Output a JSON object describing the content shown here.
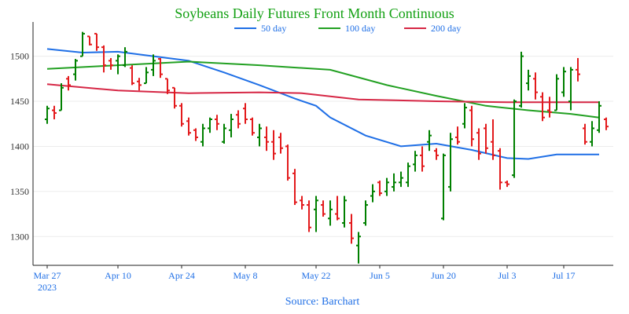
{
  "chart_data": {
    "type": "ohlc",
    "title": "Soybeans Daily Futures Front Month Continuous",
    "source": "Source: Barchart",
    "ylim": [
      1268,
      1538
    ],
    "yticks": [
      1300,
      1350,
      1400,
      1450,
      1500
    ],
    "xlim": [
      -2,
      80
    ],
    "xticks": [
      {
        "label": "Mar 27",
        "sub": "2023",
        "day": 0
      },
      {
        "label": "Apr 10",
        "sub": "",
        "day": 10
      },
      {
        "label": "Apr 24",
        "sub": "",
        "day": 19
      },
      {
        "label": "May 8",
        "sub": "",
        "day": 28
      },
      {
        "label": "May 22",
        "sub": "",
        "day": 38
      },
      {
        "label": "Jun 5",
        "sub": "",
        "day": 47
      },
      {
        "label": "Jun 20",
        "sub": "",
        "day": 56
      },
      {
        "label": "Jul 3",
        "sub": "",
        "day": 65
      },
      {
        "label": "Jul 17",
        "sub": "",
        "day": 73
      }
    ],
    "colors": {
      "up": "#008000",
      "down": "#e31a1c",
      "ma50": "#1f6fe6",
      "ma100": "#22a022",
      "ma200": "#d62745",
      "axis": "#1f6fe6"
    },
    "series": [
      {
        "name": "50 day",
        "key": "ma50",
        "points": [
          [
            0,
            1508
          ],
          [
            5,
            1504
          ],
          [
            10,
            1505
          ],
          [
            15,
            1500
          ],
          [
            20,
            1495
          ],
          [
            25,
            1482
          ],
          [
            30,
            1468
          ],
          [
            35,
            1453
          ],
          [
            38,
            1445
          ],
          [
            40,
            1432
          ],
          [
            45,
            1412
          ],
          [
            50,
            1400
          ],
          [
            55,
            1403
          ],
          [
            60,
            1396
          ],
          [
            65,
            1387
          ],
          [
            68,
            1386
          ],
          [
            72,
            1391
          ],
          [
            78,
            1391
          ]
        ]
      },
      {
        "name": "100 day",
        "key": "ma100",
        "points": [
          [
            0,
            1486
          ],
          [
            10,
            1490
          ],
          [
            20,
            1494
          ],
          [
            30,
            1490
          ],
          [
            40,
            1485
          ],
          [
            48,
            1468
          ],
          [
            55,
            1456
          ],
          [
            62,
            1445
          ],
          [
            68,
            1440
          ],
          [
            74,
            1436
          ],
          [
            78,
            1432
          ]
        ]
      },
      {
        "name": "200 day",
        "key": "ma200",
        "points": [
          [
            0,
            1469
          ],
          [
            10,
            1462
          ],
          [
            20,
            1459
          ],
          [
            30,
            1460
          ],
          [
            36,
            1459
          ],
          [
            44,
            1452
          ],
          [
            55,
            1450
          ],
          [
            65,
            1449
          ],
          [
            78,
            1449
          ]
        ]
      }
    ],
    "bars": [
      [
        0,
        1430,
        1445,
        1425,
        1442
      ],
      [
        1,
        1440,
        1445,
        1430,
        1437
      ],
      [
        2,
        1440,
        1470,
        1440,
        1465
      ],
      [
        3,
        1475,
        1478,
        1462,
        1468
      ],
      [
        4,
        1480,
        1497,
        1473,
        1495
      ],
      [
        5,
        1500,
        1527,
        1500,
        1525
      ],
      [
        6,
        1522,
        1522,
        1512,
        1513
      ],
      [
        7,
        1525,
        1525,
        1506,
        1510
      ],
      [
        8,
        1510,
        1512,
        1482,
        1490
      ],
      [
        9,
        1495,
        1498,
        1485,
        1490
      ],
      [
        10,
        1495,
        1502,
        1480,
        1500
      ],
      [
        11,
        1490,
        1510,
        1488,
        1505
      ],
      [
        12,
        1487,
        1490,
        1468,
        1470
      ],
      [
        13,
        1472,
        1476,
        1462,
        1468
      ],
      [
        14,
        1470,
        1488,
        1470,
        1482
      ],
      [
        15,
        1485,
        1502,
        1478,
        1495
      ],
      [
        16,
        1497,
        1498,
        1476,
        1480
      ],
      [
        17,
        1475,
        1475,
        1458,
        1462
      ],
      [
        18,
        1465,
        1465,
        1442,
        1445
      ],
      [
        19,
        1445,
        1448,
        1422,
        1425
      ],
      [
        20,
        1428,
        1432,
        1412,
        1415
      ],
      [
        21,
        1418,
        1420,
        1406,
        1410
      ],
      [
        22,
        1405,
        1425,
        1400,
        1420
      ],
      [
        23,
        1420,
        1432,
        1415,
        1430
      ],
      [
        24,
        1430,
        1435,
        1418,
        1425
      ],
      [
        25,
        1405,
        1425,
        1403,
        1420
      ],
      [
        26,
        1418,
        1436,
        1410,
        1430
      ],
      [
        27,
        1435,
        1440,
        1420,
        1425
      ],
      [
        28,
        1442,
        1448,
        1425,
        1430
      ],
      [
        29,
        1430,
        1432,
        1412,
        1415
      ],
      [
        30,
        1410,
        1425,
        1400,
        1420
      ],
      [
        31,
        1410,
        1422,
        1395,
        1405
      ],
      [
        32,
        1405,
        1418,
        1385,
        1392
      ],
      [
        33,
        1410,
        1415,
        1392,
        1398
      ],
      [
        34,
        1400,
        1402,
        1362,
        1365
      ],
      [
        35,
        1370,
        1375,
        1335,
        1338
      ],
      [
        36,
        1340,
        1345,
        1330,
        1335
      ],
      [
        37,
        1335,
        1340,
        1305,
        1310
      ],
      [
        38,
        1330,
        1345,
        1305,
        1340
      ],
      [
        39,
        1335,
        1340,
        1322,
        1325
      ],
      [
        40,
        1320,
        1340,
        1312,
        1330
      ],
      [
        41,
        1325,
        1345,
        1318,
        1320
      ],
      [
        42,
        1315,
        1345,
        1310,
        1340
      ],
      [
        43,
        1315,
        1325,
        1292,
        1298
      ],
      [
        44,
        1290,
        1305,
        1270,
        1300
      ],
      [
        45,
        1315,
        1340,
        1312,
        1335
      ],
      [
        46,
        1345,
        1358,
        1338,
        1350
      ],
      [
        47,
        1360,
        1362,
        1345,
        1348
      ],
      [
        48,
        1350,
        1365,
        1345,
        1360
      ],
      [
        49,
        1355,
        1370,
        1350,
        1360
      ],
      [
        50,
        1360,
        1372,
        1355,
        1365
      ],
      [
        51,
        1360,
        1382,
        1355,
        1378
      ],
      [
        52,
        1380,
        1395,
        1372,
        1390
      ],
      [
        53,
        1390,
        1400,
        1372,
        1378
      ],
      [
        54,
        1405,
        1418,
        1395,
        1412
      ],
      [
        55,
        1395,
        1398,
        1385,
        1390
      ],
      [
        56,
        1320,
        1392,
        1318,
        1390
      ],
      [
        57,
        1355,
        1415,
        1350,
        1408
      ],
      [
        58,
        1410,
        1422,
        1402,
        1405
      ],
      [
        59,
        1425,
        1448,
        1420,
        1443
      ],
      [
        60,
        1440,
        1445,
        1400,
        1408
      ],
      [
        61,
        1415,
        1420,
        1385,
        1392
      ],
      [
        62,
        1420,
        1425,
        1392,
        1398
      ],
      [
        63,
        1405,
        1430,
        1385,
        1390
      ],
      [
        64,
        1395,
        1398,
        1352,
        1360
      ],
      [
        65,
        1360,
        1362,
        1355,
        1358
      ],
      [
        66,
        1368,
        1452,
        1365,
        1450
      ],
      [
        67,
        1445,
        1505,
        1443,
        1500
      ],
      [
        68,
        1470,
        1485,
        1462,
        1478
      ],
      [
        69,
        1475,
        1482,
        1452,
        1460
      ],
      [
        70,
        1455,
        1460,
        1428,
        1432
      ],
      [
        71,
        1440,
        1455,
        1432,
        1438
      ],
      [
        72,
        1440,
        1480,
        1440,
        1475
      ],
      [
        73,
        1460,
        1488,
        1455,
        1483
      ],
      [
        74,
        1450,
        1488,
        1440,
        1485
      ],
      [
        75,
        1485,
        1498,
        1472,
        1480
      ],
      [
        76,
        1420,
        1425,
        1402,
        1405
      ],
      [
        77,
        1405,
        1428,
        1400,
        1420
      ],
      [
        78,
        1418,
        1450,
        1415,
        1445
      ],
      [
        79,
        1430,
        1432,
        1418,
        1422
      ]
    ]
  }
}
